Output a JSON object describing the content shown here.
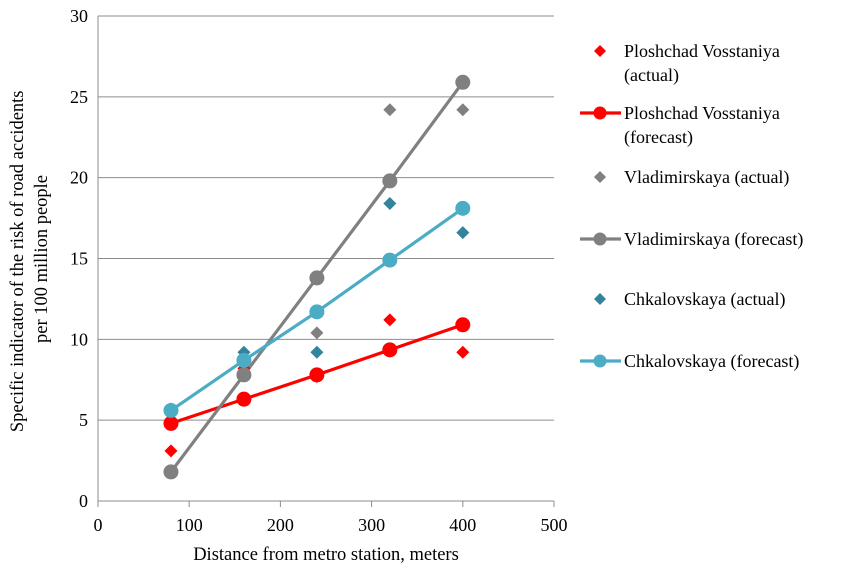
{
  "chart_data": {
    "type": "scatter",
    "xlabel": "Distance from metro station, meters",
    "ylabel_lines": [
      "Specific indicator of the risk of road accidents",
      "per 100 million people"
    ],
    "xlim": [
      0,
      500
    ],
    "ylim": [
      0,
      30
    ],
    "x_ticks": [
      0,
      100,
      200,
      300,
      400,
      500
    ],
    "y_ticks": [
      0,
      5,
      10,
      15,
      20,
      25,
      30
    ],
    "grid": "horizontal",
    "legend_position": "right",
    "series": [
      {
        "name_lines": [
          "Ploshchad Vosstaniya",
          "(actual)"
        ],
        "style": "marker",
        "marker": "diamond",
        "color": "#ff0000",
        "x": [
          80,
          160,
          240,
          320,
          400
        ],
        "y": [
          3.1,
          8.2,
          7.7,
          11.2,
          9.2
        ]
      },
      {
        "name_lines": [
          "Ploshchad Vosstaniya",
          "(forecast)"
        ],
        "style": "line",
        "marker": "circle",
        "color": "#ff0000",
        "x": [
          80,
          160,
          240,
          320,
          400
        ],
        "y": [
          4.8,
          6.3,
          7.8,
          9.35,
          10.9
        ]
      },
      {
        "name_lines": [
          "Vladimirskaya (actual)"
        ],
        "style": "marker",
        "marker": "diamond",
        "color": "#808080",
        "x": [
          80,
          160,
          240,
          320,
          400
        ],
        "y": [
          5.7,
          8.6,
          10.4,
          24.2,
          24.2
        ]
      },
      {
        "name_lines": [
          "Vladimirskaya (forecast)"
        ],
        "style": "line",
        "marker": "circle",
        "color": "#808080",
        "x": [
          80,
          160,
          240,
          320,
          400
        ],
        "y": [
          1.8,
          7.8,
          13.8,
          19.8,
          25.9
        ]
      },
      {
        "name_lines": [
          "Chkalovskaya (actual)"
        ],
        "style": "marker",
        "marker": "diamond",
        "color": "#31849b",
        "x": [
          160,
          240,
          320,
          400
        ],
        "y": [
          9.2,
          9.2,
          18.4,
          16.6
        ]
      },
      {
        "name_lines": [
          "Chkalovskaya (forecast)"
        ],
        "style": "line",
        "marker": "circle",
        "color": "#4bacc6",
        "x": [
          80,
          160,
          240,
          320,
          400
        ],
        "y": [
          5.6,
          8.7,
          11.7,
          14.9,
          18.1
        ]
      }
    ]
  }
}
